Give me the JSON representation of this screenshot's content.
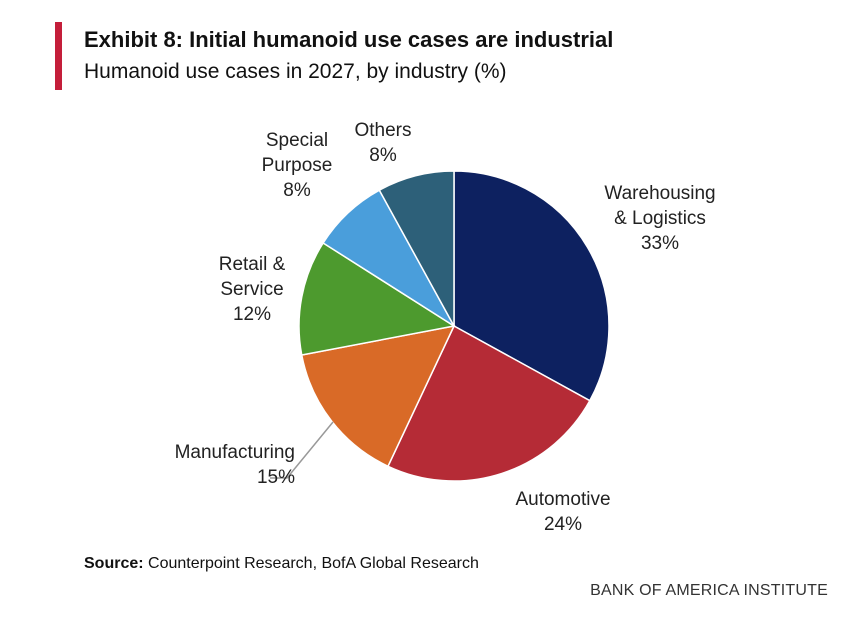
{
  "header": {
    "title": "Exhibit 8: Initial humanoid use cases are industrial",
    "subtitle": "Humanoid use cases in 2027, by industry (%)"
  },
  "source": {
    "prefix": "Source:",
    "text": "Counterpoint Research, BofA Global Research"
  },
  "brand": "BANK OF AMERICA INSTITUTE",
  "colors": {
    "accent": "#c41e3a"
  },
  "chart_data": {
    "type": "pie",
    "title": "Humanoid use cases in 2027, by industry (%)",
    "slices": [
      {
        "label_lines": [
          "Warehousing",
          "& Logistics"
        ],
        "value": 33,
        "value_label": "33%",
        "color": "#0d2160"
      },
      {
        "label_lines": [
          "Automotive"
        ],
        "value": 24,
        "value_label": "24%",
        "color": "#b52b36"
      },
      {
        "label_lines": [
          "Manufacturing"
        ],
        "value": 15,
        "value_label": "15%",
        "color": "#d96a27"
      },
      {
        "label_lines": [
          "Retail &",
          "Service"
        ],
        "value": 12,
        "value_label": "12%",
        "color": "#4d9a2e"
      },
      {
        "label_lines": [
          "Special",
          "Purpose"
        ],
        "value": 8,
        "value_label": "8%",
        "color": "#4a9edb"
      },
      {
        "label_lines": [
          "Others"
        ],
        "value": 8,
        "value_label": "8%",
        "color": "#2d6079"
      }
    ]
  }
}
